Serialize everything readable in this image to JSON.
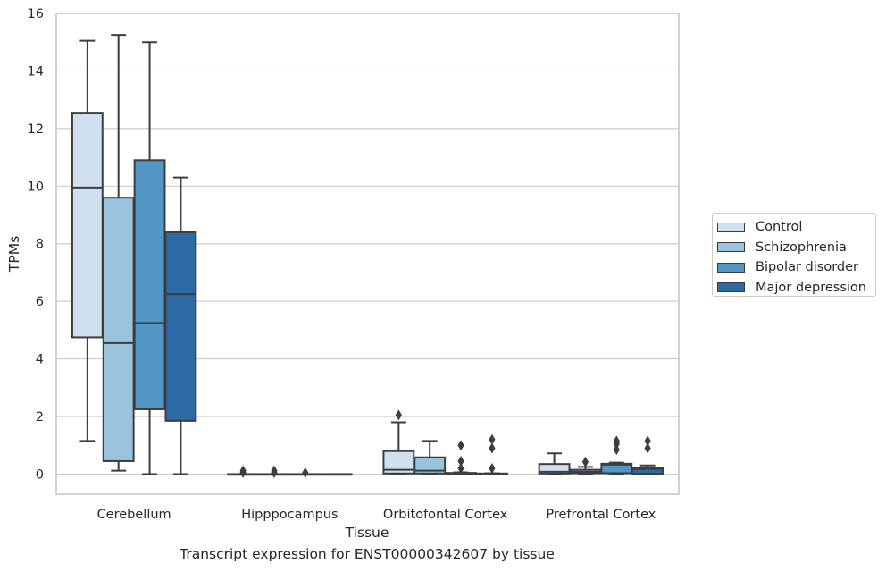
{
  "chart_data": {
    "type": "boxplot",
    "title": "Transcript expression for ENST00000342607 by tissue",
    "xlabel": "Tissue",
    "ylabel": "TPMs",
    "ylim": [
      -0.7,
      16
    ],
    "yticks": [
      0,
      2,
      4,
      6,
      8,
      10,
      12,
      14,
      16
    ],
    "grid": "horizontal",
    "legend_position": "right",
    "categories": [
      "Cerebellum",
      "Hipppocampus",
      "Orbitofontal Cortex",
      "Prefrontal Cortex"
    ],
    "series": [
      {
        "name": "Control",
        "color": "#cfe0f0",
        "boxes": [
          {
            "whislo": 1.15,
            "q1": 4.75,
            "med": 9.95,
            "q3": 12.55,
            "whishi": 15.05,
            "fliers": []
          },
          {
            "whislo": 0,
            "q1": 0,
            "med": 0,
            "q3": 0,
            "whishi": 0,
            "fliers": [
              0.05,
              0.12
            ]
          },
          {
            "whislo": 0,
            "q1": 0.02,
            "med": 0.15,
            "q3": 0.8,
            "whishi": 1.8,
            "fliers": [
              2.05
            ]
          },
          {
            "whislo": 0,
            "q1": 0.02,
            "med": 0.08,
            "q3": 0.35,
            "whishi": 0.72,
            "fliers": []
          }
        ]
      },
      {
        "name": "Schizophrenia",
        "color": "#9ac3dd",
        "boxes": [
          {
            "whislo": 0.12,
            "q1": 0.45,
            "med": 4.55,
            "q3": 9.6,
            "whishi": 15.25,
            "fliers": []
          },
          {
            "whislo": 0,
            "q1": 0,
            "med": 0,
            "q3": 0,
            "whishi": 0,
            "fliers": [
              0.05,
              0.12
            ]
          },
          {
            "whislo": 0,
            "q1": 0.02,
            "med": 0.12,
            "q3": 0.58,
            "whishi": 1.15,
            "fliers": []
          },
          {
            "whislo": 0,
            "q1": 0.03,
            "med": 0.08,
            "q3": 0.15,
            "whishi": 0.25,
            "fliers": [
              0.42
            ]
          }
        ]
      },
      {
        "name": "Bipolar disorder",
        "color": "#5296c6",
        "boxes": [
          {
            "whislo": 0,
            "q1": 2.25,
            "med": 5.25,
            "q3": 10.9,
            "whishi": 15.0,
            "fliers": []
          },
          {
            "whislo": 0,
            "q1": 0,
            "med": 0,
            "q3": 0,
            "whishi": 0,
            "fliers": [
              0.05
            ]
          },
          {
            "whislo": 0,
            "q1": 0,
            "med": 0.02,
            "q3": 0.04,
            "whishi": 0.06,
            "fliers": [
              0.2,
              0.45,
              1.0
            ]
          },
          {
            "whislo": 0,
            "q1": 0.03,
            "med": 0.33,
            "q3": 0.36,
            "whishi": 0.4,
            "fliers": [
              0.85,
              1.05,
              1.15
            ]
          }
        ]
      },
      {
        "name": "Major depression",
        "color": "#2c6aa6",
        "boxes": [
          {
            "whislo": 0,
            "q1": 1.85,
            "med": 6.25,
            "q3": 8.4,
            "whishi": 10.3,
            "fliers": []
          },
          {
            "whislo": 0,
            "q1": 0,
            "med": 0,
            "q3": 0,
            "whishi": 0,
            "fliers": []
          },
          {
            "whislo": 0,
            "q1": 0,
            "med": 0.01,
            "q3": 0.02,
            "whishi": 0.03,
            "fliers": [
              0.2,
              0.9,
              1.2
            ]
          },
          {
            "whislo": 0,
            "q1": 0.01,
            "med": 0.18,
            "q3": 0.22,
            "whishi": 0.3,
            "fliers": [
              0.9,
              1.15
            ]
          }
        ]
      }
    ]
  }
}
